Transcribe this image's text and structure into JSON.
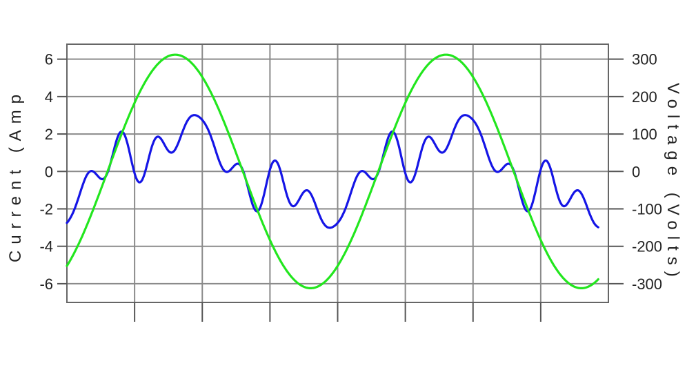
{
  "chart_data": {
    "type": "line",
    "title": "",
    "left_axis": {
      "label": "Current (Amp",
      "ylim": [
        -7,
        6.8
      ],
      "ticks": [
        6,
        4,
        2,
        0,
        -2,
        -4,
        -6
      ],
      "tick_labels": [
        "6",
        "4",
        "2",
        "0",
        "-2",
        "-4",
        "-6"
      ]
    },
    "right_axis": {
      "label": "Voltage (Volts)",
      "ylim": [
        -350,
        340
      ],
      "ticks": [
        300,
        200,
        100,
        0,
        -100,
        -200,
        -300
      ],
      "tick_labels": [
        "300",
        "200",
        "100",
        "0",
        "-100",
        "-200",
        "-300"
      ]
    },
    "x_axis": {
      "xlim": [
        0,
        8.0
      ],
      "gridlines": [
        1,
        2,
        3,
        4,
        5,
        6,
        7
      ],
      "tick_labels_shown": false
    },
    "grid": true,
    "series": [
      {
        "axis": "left",
        "color": "#1515e6",
        "period": 4.0,
        "harmonics": [
          {
            "n": 1,
            "a": 1.0,
            "b": -1.6
          },
          {
            "n": 3,
            "a": 0.3,
            "b": -0.85
          },
          {
            "n": 5,
            "a": 0.0,
            "b": 0.0
          },
          {
            "n": 7,
            "a": 0.5,
            "b": -0.6
          },
          {
            "n": 9,
            "a": -0.3,
            "b": 0.3
          }
        ],
        "x_start": 0.0,
        "x_end": 7.85
      },
      {
        "axis": "right",
        "color": "#22e61e",
        "period": 4.0,
        "amplitude": 312,
        "peak_x": 1.6,
        "x_start": 0.0,
        "x_end": 7.85
      }
    ]
  }
}
